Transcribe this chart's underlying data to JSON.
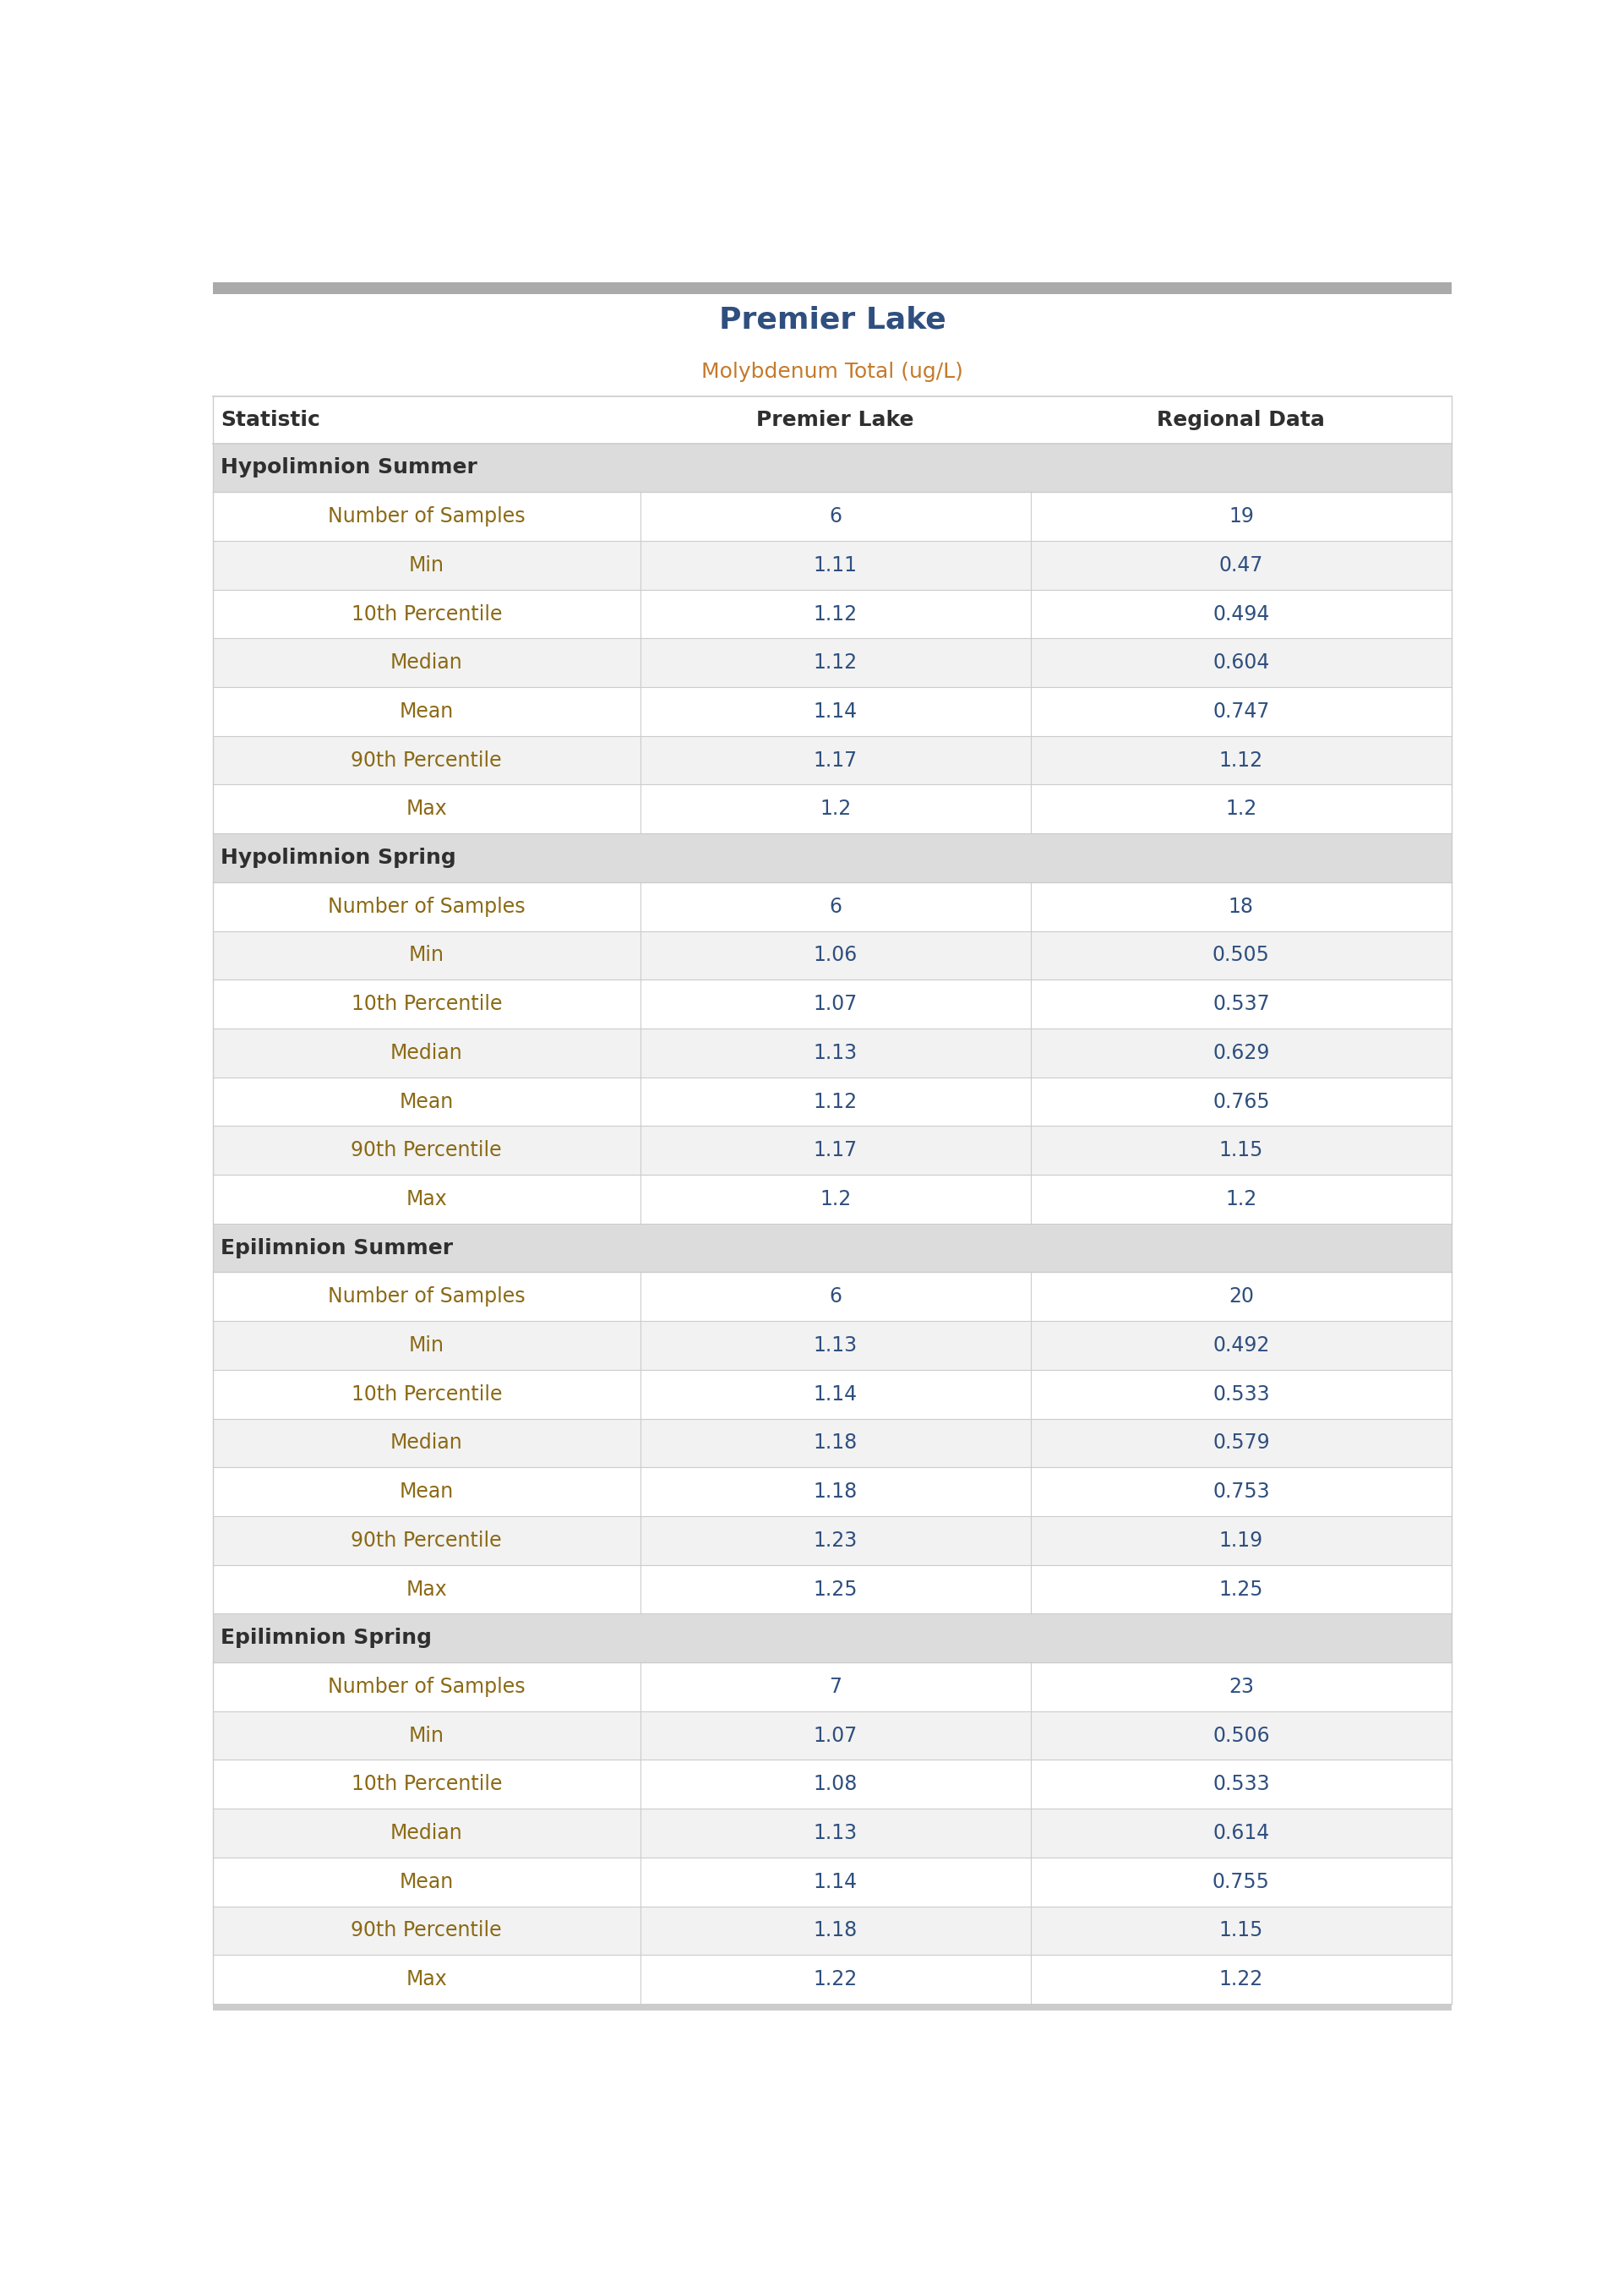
{
  "title": "Premier Lake",
  "subtitle": "Molybdenum Total (ug/L)",
  "col_headers": [
    "Statistic",
    "Premier Lake",
    "Regional Data"
  ],
  "sections": [
    {
      "header": "Hypolimnion Summer",
      "rows": [
        [
          "Number of Samples",
          "6",
          "19"
        ],
        [
          "Min",
          "1.11",
          "0.47"
        ],
        [
          "10th Percentile",
          "1.12",
          "0.494"
        ],
        [
          "Median",
          "1.12",
          "0.604"
        ],
        [
          "Mean",
          "1.14",
          "0.747"
        ],
        [
          "90th Percentile",
          "1.17",
          "1.12"
        ],
        [
          "Max",
          "1.2",
          "1.2"
        ]
      ]
    },
    {
      "header": "Hypolimnion Spring",
      "rows": [
        [
          "Number of Samples",
          "6",
          "18"
        ],
        [
          "Min",
          "1.06",
          "0.505"
        ],
        [
          "10th Percentile",
          "1.07",
          "0.537"
        ],
        [
          "Median",
          "1.13",
          "0.629"
        ],
        [
          "Mean",
          "1.12",
          "0.765"
        ],
        [
          "90th Percentile",
          "1.17",
          "1.15"
        ],
        [
          "Max",
          "1.2",
          "1.2"
        ]
      ]
    },
    {
      "header": "Epilimnion Summer",
      "rows": [
        [
          "Number of Samples",
          "6",
          "20"
        ],
        [
          "Min",
          "1.13",
          "0.492"
        ],
        [
          "10th Percentile",
          "1.14",
          "0.533"
        ],
        [
          "Median",
          "1.18",
          "0.579"
        ],
        [
          "Mean",
          "1.18",
          "0.753"
        ],
        [
          "90th Percentile",
          "1.23",
          "1.19"
        ],
        [
          "Max",
          "1.25",
          "1.25"
        ]
      ]
    },
    {
      "header": "Epilimnion Spring",
      "rows": [
        [
          "Number of Samples",
          "7",
          "23"
        ],
        [
          "Min",
          "1.07",
          "0.506"
        ],
        [
          "10th Percentile",
          "1.08",
          "0.533"
        ],
        [
          "Median",
          "1.13",
          "0.614"
        ],
        [
          "Mean",
          "1.14",
          "0.755"
        ],
        [
          "90th Percentile",
          "1.18",
          "1.15"
        ],
        [
          "Max",
          "1.22",
          "1.22"
        ]
      ]
    }
  ],
  "title_color": "#2F4F7F",
  "subtitle_color": "#C47A2B",
  "section_header_bg_color": "#DCDCDC",
  "section_header_text_color": "#2F2F2F",
  "col_header_text_color": "#2F2F2F",
  "row_text_color_statistic": "#8B6914",
  "row_text_color_values": "#2F4F7F",
  "row_bg_white": "#FFFFFF",
  "row_bg_alt": "#F2F2F2",
  "row_line_color": "#CCCCCC",
  "top_bar_color": "#AAAAAA",
  "bottom_bar_color": "#CCCCCC",
  "col_divider_color": "#CCCCCC",
  "title_fontsize": 26,
  "subtitle_fontsize": 18,
  "col_header_fontsize": 18,
  "section_header_fontsize": 18,
  "data_fontsize": 17
}
